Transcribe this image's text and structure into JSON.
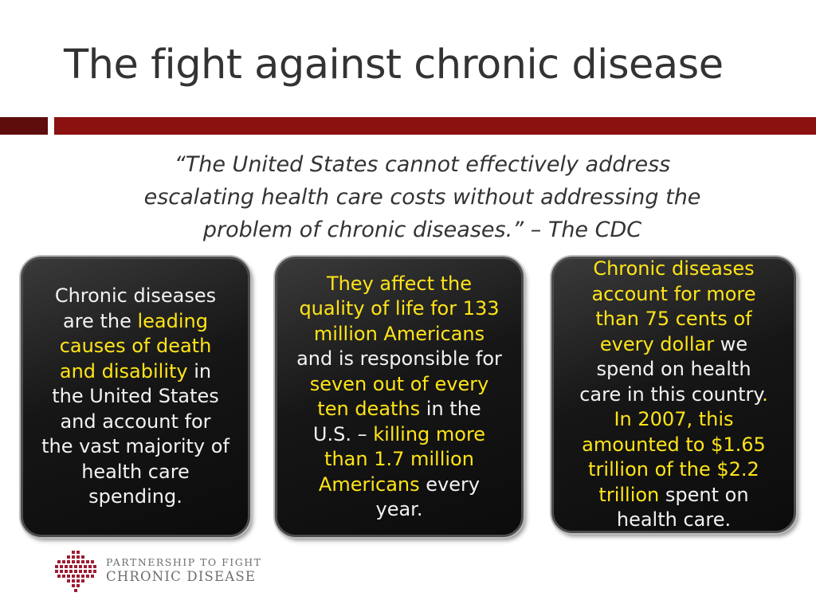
{
  "slide": {
    "title": "The fight against chronic disease",
    "quote": {
      "line1": "“The United States cannot effectively address",
      "line2": "escalating health care costs without addressing the",
      "line3": "problem of chronic diseases.” – The CDC"
    }
  },
  "cards": [
    {
      "l1": "Chronic diseases",
      "l2a": "are the ",
      "l2b": "leading",
      "l3": "causes of death",
      "l4a": "and disability",
      "l4b": " in",
      "l5": "the United States",
      "l6": "and account for",
      "l7": "the vast majority of",
      "l8": "health care",
      "l9": "spending."
    },
    {
      "l1": "They affect the",
      "l2": "quality of life for 133",
      "l3": "million Americans",
      "l4": "and is responsible for",
      "l5": "seven out of every",
      "l6a": "ten deaths",
      "l6b": " in the",
      "l7a": "U.S. – ",
      "l7b": "killing more",
      "l8": "than 1.7 million",
      "l9a": "Americans",
      "l9b": " every",
      "l10": "year."
    },
    {
      "l1": "Chronic diseases",
      "l2": "account for more",
      "l3": "than 75 cents of",
      "l4a": "every dollar",
      "l4b": " we",
      "l5": "spend on health",
      "l6a": "care in this country",
      "l6b": ".",
      "l7": "In 2007, this",
      "l8": "amounted to $1.65",
      "l9": "trillion of the $2.2",
      "l10a": "trillion",
      "l10b": " spent on",
      "l11": "health care."
    }
  ],
  "logo": {
    "line1": "PARTNERSHIP TO FIGHT",
    "line2": "CHRONIC DISEASE"
  },
  "colors": {
    "accent_dark": "#5e0c0c",
    "accent": "#8b1010",
    "highlight": "#ffe418",
    "card_text": "#f2f2f2"
  }
}
